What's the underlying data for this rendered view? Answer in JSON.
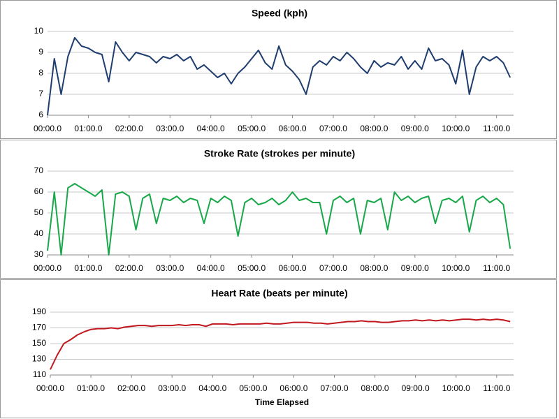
{
  "chart_data": [
    {
      "type": "line",
      "title": "Speed (kph)",
      "x": [
        0,
        10,
        20,
        30,
        40,
        50,
        60,
        70,
        80,
        90,
        100,
        110,
        120,
        130,
        140,
        150,
        160,
        170,
        180,
        190,
        200,
        210,
        220,
        230,
        240,
        250,
        260,
        270,
        280,
        290,
        300,
        310,
        320,
        330,
        340,
        350,
        360,
        370,
        380,
        390,
        400,
        410,
        420,
        430,
        440,
        450,
        460,
        470,
        480,
        490,
        500,
        510,
        520,
        530,
        540,
        550,
        560,
        570,
        580,
        590,
        600,
        610,
        620,
        630,
        640,
        650,
        660,
        670,
        680
      ],
      "series": [
        {
          "name": "Speed (kph)",
          "color": "#1f3d6e",
          "values": [
            6.0,
            8.7,
            7.0,
            8.8,
            9.7,
            9.3,
            9.2,
            9.0,
            8.9,
            7.6,
            9.5,
            9.0,
            8.6,
            9.0,
            8.9,
            8.8,
            8.5,
            8.8,
            8.7,
            8.9,
            8.6,
            8.8,
            8.2,
            8.4,
            8.1,
            7.8,
            8.0,
            7.5,
            8.0,
            8.3,
            8.7,
            9.1,
            8.5,
            8.2,
            9.3,
            8.4,
            8.1,
            7.7,
            7.0,
            8.3,
            8.6,
            8.4,
            8.8,
            8.6,
            9.0,
            8.7,
            8.3,
            8.0,
            8.6,
            8.3,
            8.5,
            8.4,
            8.8,
            8.2,
            8.6,
            8.2,
            9.2,
            8.6,
            8.7,
            8.4,
            7.5,
            9.1,
            7.0,
            8.3,
            8.8,
            8.6,
            8.8,
            8.5,
            7.8
          ]
        }
      ],
      "xlim": [
        0,
        685
      ],
      "xticks": [
        {
          "value": 0,
          "label": "00:00.0"
        },
        {
          "value": 60,
          "label": "01:00.0"
        },
        {
          "value": 120,
          "label": "02:00.0"
        },
        {
          "value": 180,
          "label": "03:00.0"
        },
        {
          "value": 240,
          "label": "04:00.0"
        },
        {
          "value": 300,
          "label": "05:00.0"
        },
        {
          "value": 360,
          "label": "06:00.0"
        },
        {
          "value": 420,
          "label": "07:00.0"
        },
        {
          "value": 480,
          "label": "08:00.0"
        },
        {
          "value": 540,
          "label": "09:00.0"
        },
        {
          "value": 600,
          "label": "10:00.0"
        },
        {
          "value": 660,
          "label": "11:00.0"
        }
      ],
      "ylim": [
        6,
        10
      ],
      "yticks": [
        6,
        7,
        8,
        9,
        10
      ],
      "grid": true
    },
    {
      "type": "line",
      "title": "Stroke Rate (strokes per minute)",
      "x": [
        0,
        10,
        20,
        30,
        40,
        50,
        60,
        70,
        80,
        90,
        100,
        110,
        120,
        130,
        140,
        150,
        160,
        170,
        180,
        190,
        200,
        210,
        220,
        230,
        240,
        250,
        260,
        270,
        280,
        290,
        300,
        310,
        320,
        330,
        340,
        350,
        360,
        370,
        380,
        390,
        400,
        410,
        420,
        430,
        440,
        450,
        460,
        470,
        480,
        490,
        500,
        510,
        520,
        530,
        540,
        550,
        560,
        570,
        580,
        590,
        600,
        610,
        620,
        630,
        640,
        650,
        660,
        670,
        680
      ],
      "series": [
        {
          "name": "Stroke Rate (strokes per minute)",
          "color": "#18a84a",
          "values": [
            32,
            60,
            30,
            62,
            64,
            62,
            60,
            58,
            61,
            30,
            59,
            60,
            58,
            42,
            57,
            59,
            45,
            57,
            56,
            58,
            55,
            57,
            56,
            45,
            57,
            55,
            58,
            56,
            39,
            55,
            57,
            54,
            55,
            57,
            54,
            56,
            60,
            56,
            57,
            55,
            55,
            40,
            56,
            58,
            55,
            57,
            40,
            56,
            55,
            57,
            42,
            60,
            56,
            58,
            55,
            57,
            58,
            45,
            56,
            57,
            55,
            58,
            41,
            56,
            58,
            55,
            57,
            54,
            33
          ]
        }
      ],
      "xlim": [
        0,
        685
      ],
      "xticks": [
        {
          "value": 0,
          "label": "00:00.0"
        },
        {
          "value": 60,
          "label": "01:00.0"
        },
        {
          "value": 120,
          "label": "02:00.0"
        },
        {
          "value": 180,
          "label": "03:00.0"
        },
        {
          "value": 240,
          "label": "04:00.0"
        },
        {
          "value": 300,
          "label": "05:00.0"
        },
        {
          "value": 360,
          "label": "06:00.0"
        },
        {
          "value": 420,
          "label": "07:00.0"
        },
        {
          "value": 480,
          "label": "08:00.0"
        },
        {
          "value": 540,
          "label": "09:00.0"
        },
        {
          "value": 600,
          "label": "10:00.0"
        },
        {
          "value": 660,
          "label": "11:00.0"
        }
      ],
      "ylim": [
        30,
        70
      ],
      "yticks": [
        30,
        40,
        50,
        60,
        70
      ],
      "grid": true
    },
    {
      "type": "line",
      "title": "Heart Rate (beats per minute)",
      "x_label": "Time Elapsed",
      "x": [
        0,
        10,
        20,
        30,
        40,
        50,
        60,
        70,
        80,
        90,
        100,
        110,
        120,
        130,
        140,
        150,
        160,
        170,
        180,
        190,
        200,
        210,
        220,
        230,
        240,
        250,
        260,
        270,
        280,
        290,
        300,
        310,
        320,
        330,
        340,
        350,
        360,
        370,
        380,
        390,
        400,
        410,
        420,
        430,
        440,
        450,
        460,
        470,
        480,
        490,
        500,
        510,
        520,
        530,
        540,
        550,
        560,
        570,
        580,
        590,
        600,
        610,
        620,
        630,
        640,
        650,
        660,
        670,
        680
      ],
      "series": [
        {
          "name": "Heart Rate (beats per minute)",
          "color": "#c0181e",
          "values": [
            117,
            135,
            150,
            155,
            161,
            165,
            168,
            169,
            169,
            170,
            169,
            171,
            172,
            173,
            173,
            172,
            173,
            173,
            173,
            174,
            173,
            174,
            174,
            172,
            175,
            175,
            175,
            174,
            175,
            175,
            175,
            175,
            176,
            175,
            175,
            176,
            177,
            177,
            177,
            176,
            176,
            175,
            176,
            177,
            178,
            178,
            179,
            178,
            178,
            177,
            177,
            178,
            179,
            179,
            180,
            179,
            180,
            179,
            180,
            179,
            180,
            181,
            181,
            180,
            181,
            180,
            181,
            180,
            178
          ]
        }
      ],
      "xlim": [
        0,
        685
      ],
      "xticks": [
        {
          "value": 0,
          "label": "00:00.0"
        },
        {
          "value": 60,
          "label": "01:00.0"
        },
        {
          "value": 120,
          "label": "02:00.0"
        },
        {
          "value": 180,
          "label": "03:00.0"
        },
        {
          "value": 240,
          "label": "04:00.0"
        },
        {
          "value": 300,
          "label": "05:00.0"
        },
        {
          "value": 360,
          "label": "06:00.0"
        },
        {
          "value": 420,
          "label": "07:00.0"
        },
        {
          "value": 480,
          "label": "08:00.0"
        },
        {
          "value": 540,
          "label": "09:00.0"
        },
        {
          "value": 600,
          "label": "10:00.0"
        },
        {
          "value": 660,
          "label": "11:00.0"
        }
      ],
      "ylim": [
        110,
        190
      ],
      "yticks": [
        110,
        130,
        150,
        170,
        190
      ],
      "grid": true
    }
  ]
}
